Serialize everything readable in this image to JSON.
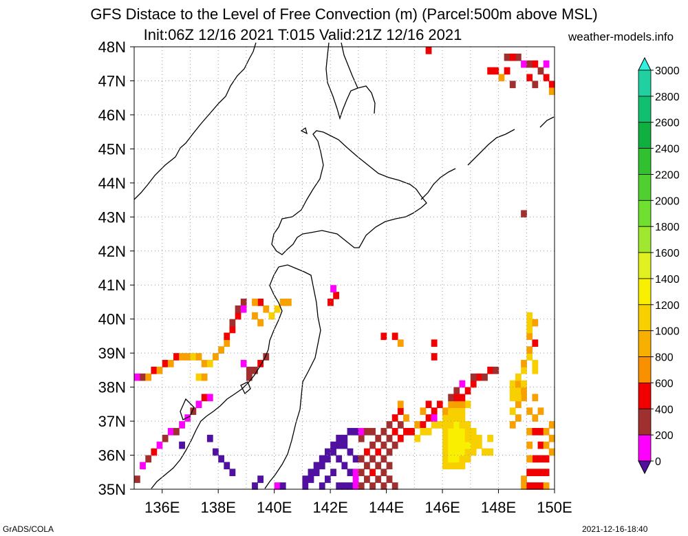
{
  "title_line1": "GFS Distace to the Level of Free Convection (m) (Parcel:500m above MSL)",
  "title_line2": "Init:06Z 12/16 2021 T:015 Valid:21Z 12/16 2021",
  "site": "weather-models.info",
  "footer_left": "GrADS/COLA",
  "footer_right": "2021-12-16-18:40",
  "lat_labels": [
    "48N",
    "47N",
    "46N",
    "45N",
    "44N",
    "43N",
    "42N",
    "41N",
    "40N",
    "39N",
    "38N",
    "37N",
    "36N",
    "35N"
  ],
  "lon_labels": [
    "136E",
    "138E",
    "140E",
    "142E",
    "144E",
    "146E",
    "148E",
    "150E"
  ],
  "colorbar": {
    "labels": [
      "3000",
      "2800",
      "2600",
      "2400",
      "2200",
      "2000",
      "1800",
      "1600",
      "1400",
      "1200",
      "1000",
      "800",
      "600",
      "400",
      "200",
      "0"
    ],
    "colors": [
      "#30f0e0",
      "#20d0a0",
      "#10c070",
      "#10b040",
      "#30c030",
      "#50d030",
      "#70e030",
      "#a0e830",
      "#e0f020",
      "#f8f000",
      "#f8d000",
      "#f8b000",
      "#f89000",
      "#f00000",
      "#a03030",
      "#ff00ff",
      "#5010a0"
    ]
  },
  "map": {
    "lon_range": [
      135,
      150
    ],
    "lat_range": [
      35,
      48
    ],
    "palette": {
      "p": "#ff00ff",
      "b": "#a03030",
      "r": "#f00000",
      "o": "#f8a000",
      "y": "#f8d000",
      "l": "#f8f000",
      "v": "#5010a0"
    },
    "cells": [
      [
        135.0,
        38.2,
        "p"
      ],
      [
        135.2,
        38.2,
        "b"
      ],
      [
        135.4,
        38.2,
        "o"
      ],
      [
        135.6,
        38.4,
        "r"
      ],
      [
        135.8,
        38.4,
        "o"
      ],
      [
        136.0,
        38.6,
        "r"
      ],
      [
        136.2,
        38.6,
        "o"
      ],
      [
        136.4,
        38.8,
        "r"
      ],
      [
        136.6,
        38.8,
        "o"
      ],
      [
        136.8,
        38.8,
        "o"
      ],
      [
        137.0,
        38.8,
        "y"
      ],
      [
        137.2,
        38.8,
        "o"
      ],
      [
        137.4,
        38.6,
        "o"
      ],
      [
        137.6,
        38.6,
        "y"
      ],
      [
        137.8,
        38.8,
        "o"
      ],
      [
        138.0,
        39.0,
        "o"
      ],
      [
        138.2,
        39.2,
        "o"
      ],
      [
        138.2,
        39.4,
        "r"
      ],
      [
        138.4,
        39.6,
        "r"
      ],
      [
        138.4,
        39.8,
        "b"
      ],
      [
        138.6,
        40.0,
        "r"
      ],
      [
        138.6,
        40.2,
        "b"
      ],
      [
        138.8,
        40.4,
        "b"
      ],
      [
        138.8,
        40.2,
        "p"
      ],
      [
        137.2,
        38.2,
        "y"
      ],
      [
        137.4,
        38.2,
        "o"
      ],
      [
        140.0,
        40.2,
        "y"
      ],
      [
        140.2,
        40.4,
        "o"
      ],
      [
        140.4,
        40.4,
        "o"
      ],
      [
        139.8,
        40.0,
        "y"
      ],
      [
        139.6,
        40.2,
        "o"
      ],
      [
        139.4,
        40.4,
        "r"
      ],
      [
        139.2,
        40.4,
        "o"
      ],
      [
        139.4,
        39.8,
        "o"
      ],
      [
        139.2,
        40.0,
        "o"
      ],
      [
        139.0,
        38.2,
        "b"
      ],
      [
        139.2,
        38.4,
        "b"
      ],
      [
        139.4,
        38.6,
        "r"
      ],
      [
        139.6,
        38.8,
        "b"
      ],
      [
        139.0,
        38.4,
        "b"
      ],
      [
        138.8,
        38.6,
        "p"
      ],
      [
        141.9,
        40.4,
        "r"
      ],
      [
        142.1,
        40.6,
        "r"
      ],
      [
        142.0,
        40.8,
        "p"
      ],
      [
        143.8,
        39.4,
        "r"
      ],
      [
        144.2,
        39.4,
        "r"
      ],
      [
        144.4,
        39.2,
        "o"
      ],
      [
        145.6,
        39.2,
        "r"
      ],
      [
        145.6,
        38.8,
        "r"
      ],
      [
        135.0,
        35.2,
        "b"
      ],
      [
        135.2,
        35.6,
        "p"
      ],
      [
        135.4,
        35.8,
        "b"
      ],
      [
        135.6,
        36.0,
        "r"
      ],
      [
        135.8,
        36.2,
        "p"
      ],
      [
        136.0,
        36.4,
        "b"
      ],
      [
        136.2,
        36.6,
        "p"
      ],
      [
        136.4,
        36.6,
        "b"
      ],
      [
        136.6,
        36.8,
        "p"
      ],
      [
        136.8,
        37.0,
        "p"
      ],
      [
        137.0,
        37.2,
        "b"
      ],
      [
        137.2,
        37.4,
        "p"
      ],
      [
        137.4,
        37.6,
        "r"
      ],
      [
        137.6,
        37.6,
        "p"
      ],
      [
        136.6,
        36.2,
        "v"
      ],
      [
        137.6,
        36.4,
        "v"
      ],
      [
        137.8,
        36.0,
        "v"
      ],
      [
        138.0,
        35.8,
        "v"
      ],
      [
        138.2,
        35.6,
        "v"
      ],
      [
        138.4,
        35.4,
        "v"
      ],
      [
        139.2,
        35.0,
        "v"
      ],
      [
        139.4,
        35.2,
        "v"
      ],
      [
        140.0,
        35.0,
        "p"
      ],
      [
        140.2,
        35.0,
        "v"
      ],
      [
        141.0,
        35.0,
        "v"
      ],
      [
        141.2,
        35.2,
        "v"
      ],
      [
        141.4,
        35.4,
        "v"
      ],
      [
        141.6,
        35.6,
        "v"
      ],
      [
        141.8,
        35.8,
        "v"
      ],
      [
        142.0,
        36.0,
        "v"
      ],
      [
        142.2,
        36.2,
        "v"
      ],
      [
        142.4,
        36.4,
        "v"
      ],
      [
        142.6,
        36.6,
        "v"
      ],
      [
        142.8,
        36.6,
        "v"
      ],
      [
        141.0,
        35.2,
        "v"
      ],
      [
        141.2,
        35.4,
        "v"
      ],
      [
        141.4,
        35.6,
        "v"
      ],
      [
        141.6,
        35.8,
        "v"
      ],
      [
        141.8,
        36.0,
        "v"
      ],
      [
        142.0,
        36.2,
        "v"
      ],
      [
        142.2,
        36.4,
        "v"
      ],
      [
        142.4,
        36.2,
        "v"
      ],
      [
        142.6,
        36.0,
        "v"
      ],
      [
        142.8,
        35.8,
        "v"
      ],
      [
        142.6,
        35.4,
        "v"
      ],
      [
        142.4,
        35.6,
        "v"
      ],
      [
        142.2,
        35.8,
        "v"
      ],
      [
        142.0,
        35.4,
        "v"
      ],
      [
        141.8,
        35.2,
        "v"
      ],
      [
        141.6,
        35.0,
        "v"
      ],
      [
        142.2,
        35.0,
        "v"
      ],
      [
        142.4,
        35.0,
        "v"
      ],
      [
        142.6,
        35.0,
        "v"
      ],
      [
        142.8,
        35.0,
        "p"
      ],
      [
        142.8,
        35.2,
        "p"
      ],
      [
        142.8,
        35.4,
        "p"
      ],
      [
        143.0,
        35.0,
        "b"
      ],
      [
        143.0,
        35.4,
        "b"
      ],
      [
        143.0,
        35.8,
        "b"
      ],
      [
        143.2,
        36.0,
        "r"
      ],
      [
        143.2,
        35.6,
        "b"
      ],
      [
        143.2,
        35.2,
        "b"
      ],
      [
        143.4,
        35.0,
        "b"
      ],
      [
        143.4,
        35.4,
        "r"
      ],
      [
        143.4,
        35.8,
        "b"
      ],
      [
        143.4,
        36.2,
        "b"
      ],
      [
        143.6,
        36.4,
        "b"
      ],
      [
        143.6,
        36.0,
        "r"
      ],
      [
        143.6,
        35.6,
        "b"
      ],
      [
        143.6,
        35.2,
        "b"
      ],
      [
        143.8,
        35.0,
        "b"
      ],
      [
        143.8,
        35.4,
        "b"
      ],
      [
        143.8,
        35.8,
        "b"
      ],
      [
        143.8,
        36.2,
        "b"
      ],
      [
        143.8,
        36.6,
        "b"
      ],
      [
        144.0,
        36.8,
        "b"
      ],
      [
        144.0,
        36.4,
        "b"
      ],
      [
        144.0,
        36.0,
        "b"
      ],
      [
        144.0,
        35.6,
        "b"
      ],
      [
        144.0,
        35.2,
        "b"
      ],
      [
        144.2,
        35.0,
        "b"
      ],
      [
        144.2,
        36.2,
        "b"
      ],
      [
        144.2,
        36.6,
        "r"
      ],
      [
        144.2,
        37.0,
        "r"
      ],
      [
        144.4,
        37.2,
        "r"
      ],
      [
        144.4,
        36.8,
        "b"
      ],
      [
        144.4,
        36.4,
        "r"
      ],
      [
        144.6,
        36.6,
        "r"
      ],
      [
        144.8,
        36.6,
        "r"
      ],
      [
        144.6,
        37.0,
        "o"
      ],
      [
        144.4,
        37.4,
        "o"
      ],
      [
        143.0,
        36.4,
        "b"
      ],
      [
        143.0,
        36.6,
        "p"
      ],
      [
        143.2,
        36.6,
        "b"
      ],
      [
        143.4,
        36.6,
        "b"
      ],
      [
        145.0,
        36.8,
        "o"
      ],
      [
        145.2,
        36.8,
        "r"
      ],
      [
        145.4,
        37.0,
        "r"
      ],
      [
        145.6,
        37.2,
        "r"
      ],
      [
        145.8,
        37.4,
        "r"
      ],
      [
        145.0,
        36.4,
        "y"
      ],
      [
        145.2,
        36.6,
        "y"
      ],
      [
        145.4,
        36.6,
        "y"
      ],
      [
        145.6,
        36.8,
        "y"
      ],
      [
        145.8,
        36.8,
        "y"
      ],
      [
        145.2,
        37.2,
        "o"
      ],
      [
        145.6,
        37.0,
        "p"
      ],
      [
        145.4,
        37.4,
        "r"
      ],
      [
        146.0,
        35.6,
        "y"
      ],
      [
        146.2,
        35.6,
        "y"
      ],
      [
        146.4,
        35.6,
        "y"
      ],
      [
        146.6,
        35.6,
        "y"
      ],
      [
        146.0,
        35.8,
        "y"
      ],
      [
        146.2,
        35.8,
        "l"
      ],
      [
        146.4,
        35.8,
        "l"
      ],
      [
        146.6,
        35.8,
        "y"
      ],
      [
        146.8,
        35.8,
        "y"
      ],
      [
        147.0,
        36.0,
        "y"
      ],
      [
        146.0,
        36.0,
        "y"
      ],
      [
        146.2,
        36.0,
        "l"
      ],
      [
        146.4,
        36.0,
        "l"
      ],
      [
        146.6,
        36.0,
        "l"
      ],
      [
        146.8,
        36.0,
        "y"
      ],
      [
        147.0,
        36.2,
        "y"
      ],
      [
        147.2,
        36.2,
        "y"
      ],
      [
        147.4,
        36.0,
        "y"
      ],
      [
        147.6,
        36.0,
        "y"
      ],
      [
        147.6,
        36.4,
        "y"
      ],
      [
        146.0,
        36.2,
        "y"
      ],
      [
        146.2,
        36.2,
        "l"
      ],
      [
        146.4,
        36.2,
        "l"
      ],
      [
        146.6,
        36.2,
        "l"
      ],
      [
        146.8,
        36.2,
        "l"
      ],
      [
        146.0,
        36.4,
        "y"
      ],
      [
        146.2,
        36.4,
        "l"
      ],
      [
        146.4,
        36.4,
        "l"
      ],
      [
        146.6,
        36.4,
        "l"
      ],
      [
        146.8,
        36.4,
        "y"
      ],
      [
        147.0,
        36.4,
        "y"
      ],
      [
        147.2,
        36.4,
        "y"
      ],
      [
        146.0,
        36.6,
        "y"
      ],
      [
        146.2,
        36.6,
        "l"
      ],
      [
        146.4,
        36.6,
        "l"
      ],
      [
        146.6,
        36.6,
        "l"
      ],
      [
        146.8,
        36.6,
        "y"
      ],
      [
        147.0,
        36.6,
        "y"
      ],
      [
        146.0,
        36.8,
        "y"
      ],
      [
        146.2,
        36.8,
        "y"
      ],
      [
        146.4,
        36.8,
        "l"
      ],
      [
        146.6,
        36.8,
        "y"
      ],
      [
        146.8,
        36.8,
        "y"
      ],
      [
        146.0,
        37.0,
        "y"
      ],
      [
        146.2,
        37.0,
        "y"
      ],
      [
        146.4,
        37.0,
        "y"
      ],
      [
        146.6,
        37.0,
        "y"
      ],
      [
        146.0,
        37.2,
        "o"
      ],
      [
        146.2,
        37.2,
        "y"
      ],
      [
        146.4,
        37.2,
        "y"
      ],
      [
        146.6,
        37.2,
        "y"
      ],
      [
        146.8,
        37.4,
        "y"
      ],
      [
        146.4,
        37.4,
        "o"
      ],
      [
        146.6,
        37.4,
        "o"
      ],
      [
        146.2,
        37.4,
        "o"
      ],
      [
        146.2,
        37.6,
        "b"
      ],
      [
        146.4,
        37.8,
        "b"
      ],
      [
        146.6,
        38.0,
        "p"
      ],
      [
        146.8,
        37.8,
        "r"
      ],
      [
        147.0,
        38.0,
        "r"
      ],
      [
        147.2,
        38.2,
        "r"
      ],
      [
        147.4,
        38.2,
        "b"
      ],
      [
        147.6,
        38.4,
        "r"
      ],
      [
        147.8,
        38.4,
        "b"
      ],
      [
        147.0,
        38.2,
        "b"
      ],
      [
        146.6,
        37.6,
        "r"
      ],
      [
        146.4,
        37.6,
        "r"
      ],
      [
        148.8,
        35.0,
        "o"
      ],
      [
        148.8,
        35.2,
        "o"
      ],
      [
        149.0,
        35.0,
        "r"
      ],
      [
        149.0,
        35.4,
        "r"
      ],
      [
        149.2,
        35.0,
        "r"
      ],
      [
        149.2,
        35.4,
        "r"
      ],
      [
        149.2,
        35.8,
        "r"
      ],
      [
        149.4,
        35.0,
        "r"
      ],
      [
        149.4,
        35.4,
        "r"
      ],
      [
        149.4,
        35.8,
        "r"
      ],
      [
        149.4,
        36.2,
        "r"
      ],
      [
        149.6,
        35.0,
        "o"
      ],
      [
        149.6,
        35.4,
        "r"
      ],
      [
        149.6,
        35.8,
        "r"
      ],
      [
        149.6,
        36.2,
        "o"
      ],
      [
        149.0,
        35.8,
        "o"
      ],
      [
        149.0,
        36.2,
        "o"
      ],
      [
        149.0,
        36.6,
        "o"
      ],
      [
        149.2,
        36.6,
        "r"
      ],
      [
        149.4,
        36.6,
        "r"
      ],
      [
        149.6,
        36.6,
        "o"
      ],
      [
        149.8,
        36.8,
        "o"
      ],
      [
        149.8,
        36.4,
        "o"
      ],
      [
        149.8,
        36.0,
        "o"
      ],
      [
        148.4,
        36.8,
        "o"
      ],
      [
        148.6,
        37.0,
        "o"
      ],
      [
        148.4,
        37.2,
        "y"
      ],
      [
        148.6,
        37.4,
        "o"
      ],
      [
        148.8,
        37.6,
        "o"
      ],
      [
        148.6,
        37.6,
        "y"
      ],
      [
        148.4,
        37.6,
        "y"
      ],
      [
        148.4,
        37.8,
        "y"
      ],
      [
        148.6,
        37.8,
        "y"
      ],
      [
        148.8,
        37.8,
        "o"
      ],
      [
        148.4,
        38.0,
        "y"
      ],
      [
        148.6,
        38.0,
        "o"
      ],
      [
        148.8,
        38.0,
        "y"
      ],
      [
        148.6,
        38.2,
        "y"
      ],
      [
        148.8,
        38.4,
        "y"
      ],
      [
        148.8,
        38.6,
        "o"
      ],
      [
        149.0,
        38.8,
        "y"
      ],
      [
        149.0,
        39.0,
        "o"
      ],
      [
        149.2,
        39.2,
        "r"
      ],
      [
        149.0,
        39.4,
        "o"
      ],
      [
        149.0,
        39.6,
        "y"
      ],
      [
        149.0,
        39.8,
        "y"
      ],
      [
        149.2,
        39.8,
        "o"
      ],
      [
        149.0,
        40.0,
        "y"
      ],
      [
        149.2,
        38.6,
        "y"
      ],
      [
        149.2,
        38.4,
        "y"
      ],
      [
        149.0,
        37.2,
        "o"
      ],
      [
        149.2,
        37.0,
        "o"
      ],
      [
        149.4,
        37.2,
        "o"
      ],
      [
        149.2,
        37.6,
        "o"
      ],
      [
        145.4,
        47.8,
        "r"
      ],
      [
        147.6,
        47.2,
        "r"
      ],
      [
        147.8,
        47.2,
        "r"
      ],
      [
        148.0,
        47.0,
        "o"
      ],
      [
        148.2,
        47.2,
        "r"
      ],
      [
        148.2,
        47.6,
        "b"
      ],
      [
        148.6,
        47.6,
        "b"
      ],
      [
        148.8,
        47.4,
        "p"
      ],
      [
        149.0,
        47.4,
        "b"
      ],
      [
        149.2,
        47.4,
        "r"
      ],
      [
        149.4,
        47.2,
        "b"
      ],
      [
        149.6,
        47.0,
        "r"
      ],
      [
        149.8,
        46.8,
        "r"
      ],
      [
        149.8,
        46.6,
        "o"
      ],
      [
        148.4,
        46.8,
        "b"
      ],
      [
        149.0,
        47.0,
        "r"
      ],
      [
        149.2,
        46.8,
        "b"
      ],
      [
        149.6,
        47.4,
        "p"
      ],
      [
        148.8,
        43.0,
        "b"
      ],
      [
        148.4,
        47.6,
        "r"
      ]
    ]
  }
}
